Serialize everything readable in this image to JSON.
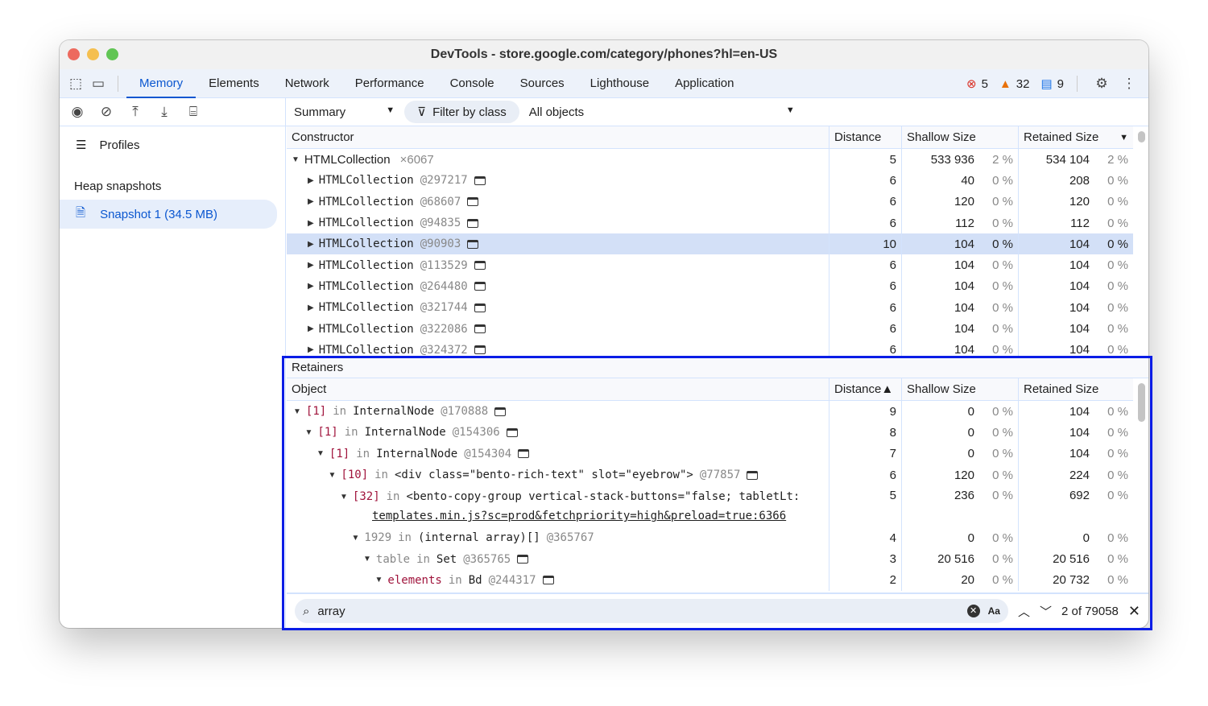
{
  "window": {
    "title": "DevTools - store.google.com/category/phones?hl=en-US"
  },
  "tabs": [
    "Memory",
    "Elements",
    "Network",
    "Performance",
    "Console",
    "Sources",
    "Lighthouse",
    "Application"
  ],
  "status": {
    "errors": "5",
    "warnings": "32",
    "messages": "9",
    "error_color": "#d93025",
    "warning_color": "#e8710a",
    "message_color": "#1a73e8"
  },
  "toolbar": {
    "view": "Summary",
    "filter": "Filter by class",
    "objects": "All objects"
  },
  "sidebar": {
    "profiles": "Profiles",
    "heap_title": "Heap snapshots",
    "snapshot": "Snapshot 1 (34.5 MB)"
  },
  "summary": {
    "columns": [
      "Constructor",
      "Distance",
      "Shallow Size",
      "Retained Size"
    ],
    "group": {
      "name": "HTMLCollection",
      "count": "×6067",
      "distance": "5",
      "shallow": "533 936",
      "shallow_pct": "2 %",
      "retained": "534 104",
      "retained_pct": "2 %"
    },
    "rows": [
      {
        "name": "HTMLCollection",
        "id": "@297217",
        "distance": "6",
        "shallow": "40",
        "shallow_pct": "0 %",
        "retained": "208",
        "retained_pct": "0 %"
      },
      {
        "name": "HTMLCollection",
        "id": "@68607",
        "distance": "6",
        "shallow": "120",
        "shallow_pct": "0 %",
        "retained": "120",
        "retained_pct": "0 %"
      },
      {
        "name": "HTMLCollection",
        "id": "@94835",
        "distance": "6",
        "shallow": "112",
        "shallow_pct": "0 %",
        "retained": "112",
        "retained_pct": "0 %"
      },
      {
        "name": "HTMLCollection",
        "id": "@90903",
        "distance": "10",
        "shallow": "104",
        "shallow_pct": "0 %",
        "retained": "104",
        "retained_pct": "0 %",
        "selected": true
      },
      {
        "name": "HTMLCollection",
        "id": "@113529",
        "distance": "6",
        "shallow": "104",
        "shallow_pct": "0 %",
        "retained": "104",
        "retained_pct": "0 %"
      },
      {
        "name": "HTMLCollection",
        "id": "@264480",
        "distance": "6",
        "shallow": "104",
        "shallow_pct": "0 %",
        "retained": "104",
        "retained_pct": "0 %"
      },
      {
        "name": "HTMLCollection",
        "id": "@321744",
        "distance": "6",
        "shallow": "104",
        "shallow_pct": "0 %",
        "retained": "104",
        "retained_pct": "0 %"
      },
      {
        "name": "HTMLCollection",
        "id": "@322086",
        "distance": "6",
        "shallow": "104",
        "shallow_pct": "0 %",
        "retained": "104",
        "retained_pct": "0 %"
      },
      {
        "name": "HTMLCollection",
        "id": "@324372",
        "distance": "6",
        "shallow": "104",
        "shallow_pct": "0 %",
        "retained": "104",
        "retained_pct": "0 %"
      }
    ]
  },
  "retainers": {
    "title": "Retainers",
    "columns": [
      "Object",
      "Distance▲",
      "Shallow Size",
      "Retained Size"
    ],
    "rows": [
      {
        "prop": "[1]",
        "in": "in",
        "obj": "InternalNode",
        "id": "@170888",
        "distance": "9",
        "shallow": "0",
        "shallow_pct": "0 %",
        "retained": "104",
        "retained_pct": "0 %"
      },
      {
        "prop": "[1]",
        "in": "in",
        "obj": "InternalNode",
        "id": "@154306",
        "distance": "8",
        "shallow": "0",
        "shallow_pct": "0 %",
        "retained": "104",
        "retained_pct": "0 %"
      },
      {
        "prop": "[1]",
        "in": "in",
        "obj": "InternalNode",
        "id": "@154304",
        "distance": "7",
        "shallow": "0",
        "shallow_pct": "0 %",
        "retained": "104",
        "retained_pct": "0 %"
      },
      {
        "prop": "[10]",
        "in": "in",
        "obj": "<div class=\"bento-rich-text\" slot=\"eyebrow\">",
        "id": "@77857",
        "distance": "6",
        "shallow": "120",
        "shallow_pct": "0 %",
        "retained": "224",
        "retained_pct": "0 %"
      },
      {
        "prop": "[32]",
        "in": "in",
        "obj": "<bento-copy-group vertical-stack-buttons=\"false; tabletLt:",
        "id": "",
        "distance": "5",
        "shallow": "236",
        "shallow_pct": "0 %",
        "retained": "692",
        "retained_pct": "0 %",
        "link": "templates.min.js?sc=prod&fetchpriority=high&preload=true:6366"
      },
      {
        "prop": "1929",
        "in": "in",
        "obj": "(internal array)[]",
        "id": "@365767",
        "distance": "4",
        "shallow": "0",
        "shallow_pct": "0 %",
        "retained": "0",
        "retained_pct": "0 %",
        "gray": true,
        "nobox": true
      },
      {
        "prop": "table",
        "in": "in",
        "obj": "Set",
        "id": "@365765",
        "distance": "3",
        "shallow": "20 516",
        "shallow_pct": "0 %",
        "retained": "20 516",
        "retained_pct": "0 %",
        "gray": true
      },
      {
        "prop": "elements",
        "in": "in",
        "obj": "Bd",
        "id": "@244317",
        "distance": "2",
        "shallow": "20",
        "shallow_pct": "0 %",
        "retained": "20 732",
        "retained_pct": "0 %"
      }
    ]
  },
  "search": {
    "value": "array",
    "case_label": "Aa",
    "result": "2 of 79058"
  }
}
